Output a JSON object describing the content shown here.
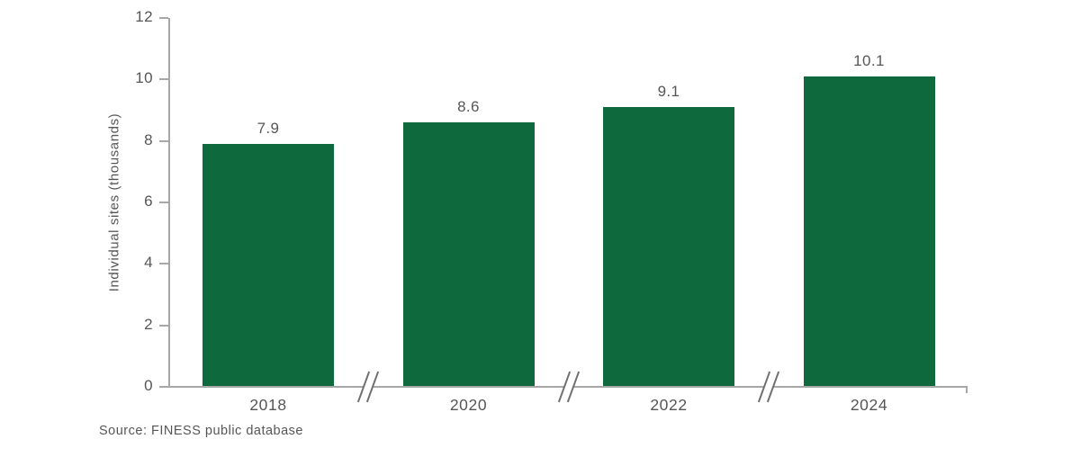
{
  "chart_data": {
    "type": "bar",
    "categories": [
      "2018",
      "2020",
      "2022",
      "2024"
    ],
    "values": [
      7.9,
      8.6,
      9.1,
      10.1
    ],
    "value_labels": [
      "7.9",
      "8.6",
      "9.1",
      "10.1"
    ],
    "title": "",
    "xlabel": "",
    "ylabel": "Individual sites (thousands)",
    "ylim": [
      0,
      12
    ],
    "yticks": [
      0,
      2,
      4,
      6,
      8,
      10,
      12
    ],
    "grid": "off",
    "legend": "none",
    "x_axis_break_marks_between_bars": true,
    "colors": {
      "bar": "#0e693c",
      "axis": "#a7a7a7",
      "break_mark": "#6f6f6f",
      "text": "#565656"
    }
  },
  "source_note": "Source: FINESS public database"
}
